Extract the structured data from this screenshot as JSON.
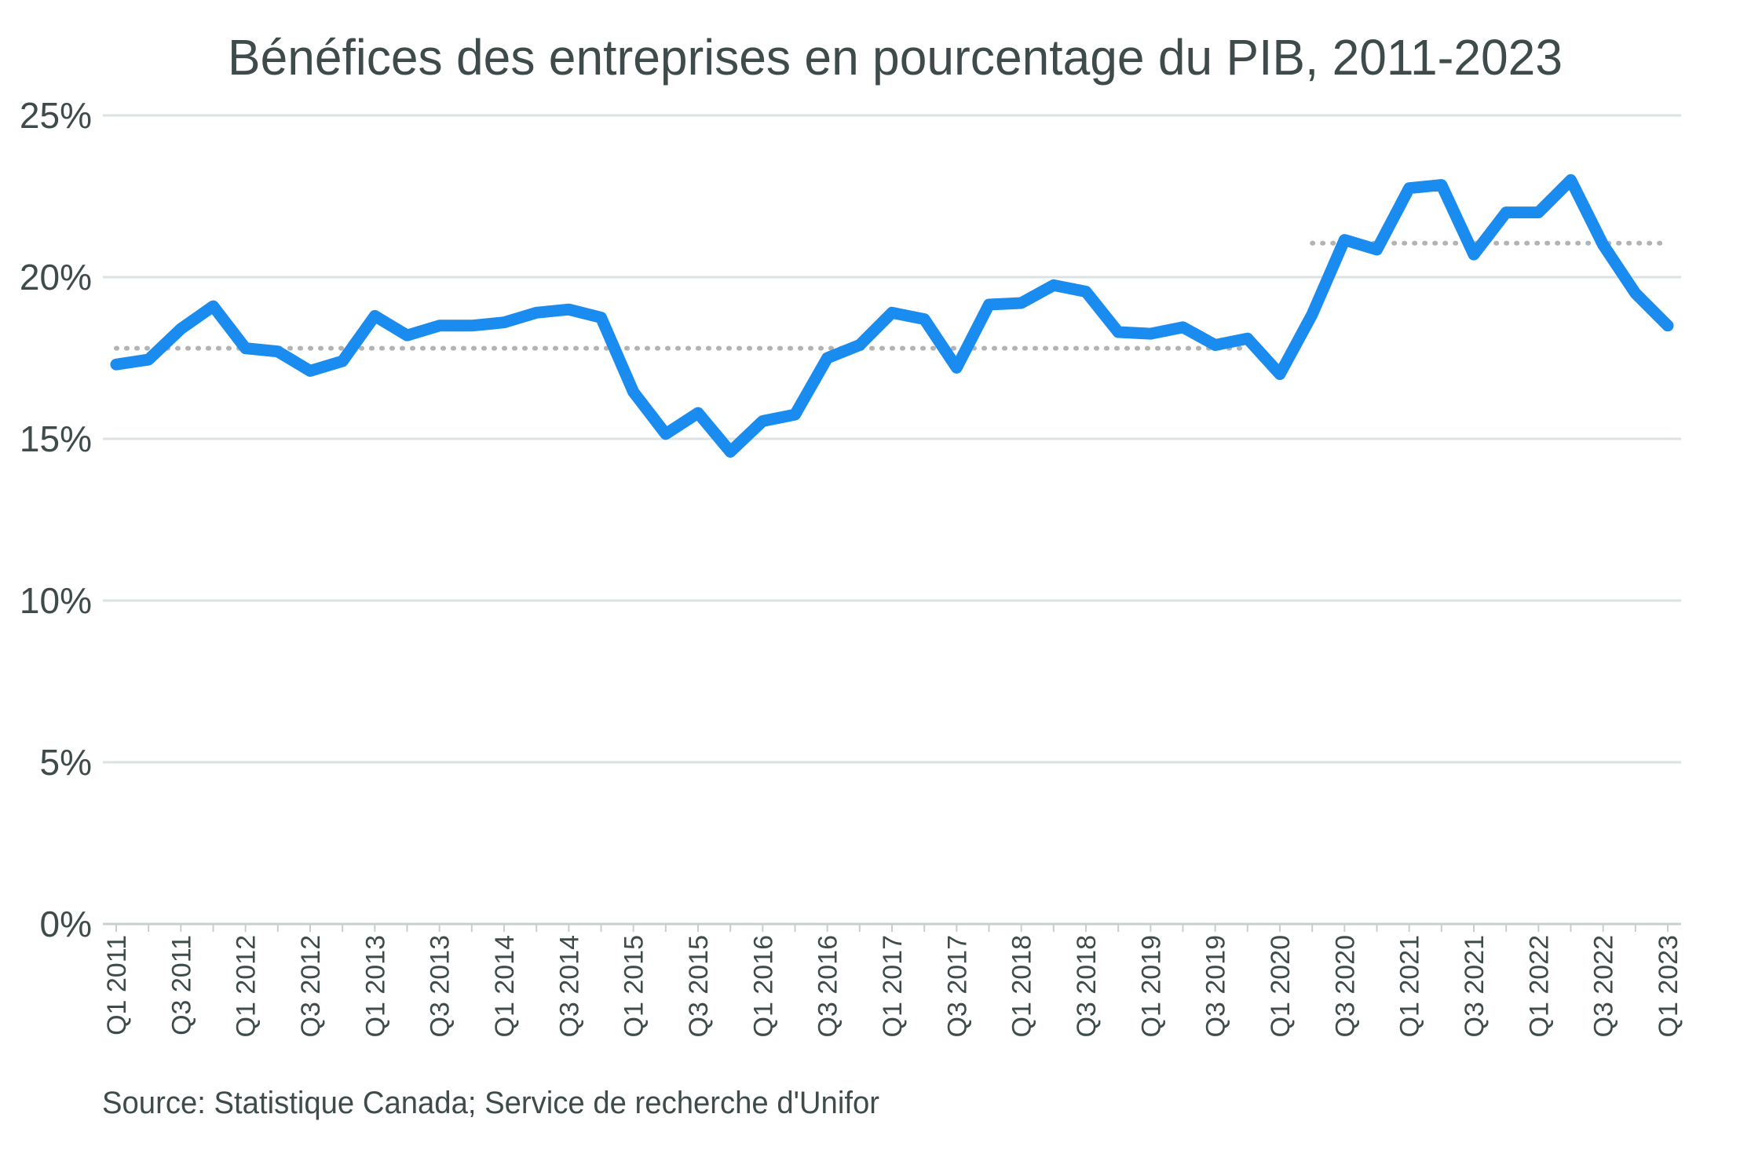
{
  "chart_data": {
    "type": "line",
    "title": "Bénéfices des entreprises en pourcentage du PIB, 2011-2023",
    "source": "Source: Statistique Canada; Service de recherche d'Unifor",
    "categories": [
      "Q1 2011",
      null,
      "Q3 2011",
      null,
      "Q1 2012",
      null,
      "Q3 2012",
      null,
      "Q1 2013",
      null,
      "Q3 2013",
      null,
      "Q1 2014",
      null,
      "Q3 2014",
      null,
      "Q1 2015",
      null,
      "Q3 2015",
      null,
      "Q1 2016",
      null,
      "Q3 2016",
      null,
      "Q1 2017",
      null,
      "Q3 2017",
      null,
      "Q1 2018",
      null,
      "Q3 2018",
      null,
      "Q1 2019",
      null,
      "Q3 2019",
      null,
      "Q1 2020",
      null,
      "Q3 2020",
      null,
      "Q1 2021",
      null,
      "Q3 2021",
      null,
      "Q1 2022",
      null,
      "Q3 2022",
      null,
      "Q1 2023"
    ],
    "series": [
      {
        "color": "#1a8cf0",
        "dashed": false,
        "values": [
          17.3,
          17.45,
          18.4,
          19.1,
          17.8,
          17.7,
          17.1,
          17.4,
          18.8,
          18.2,
          18.5,
          18.5,
          18.6,
          18.9,
          19.0,
          18.75,
          16.45,
          15.15,
          15.8,
          14.6,
          15.55,
          15.75,
          17.5,
          17.9,
          18.9,
          18.7,
          17.2,
          19.15,
          19.2,
          19.75,
          19.55,
          18.3,
          18.25,
          18.45,
          17.9,
          18.1,
          17.0,
          18.85,
          21.15,
          20.85,
          22.75,
          22.85,
          20.7,
          22.0,
          22.0,
          23.0,
          21.0,
          19.5,
          18.5
        ]
      },
      {
        "color": "#b3b3b3",
        "dashed": true,
        "values": [
          17.8,
          17.8,
          17.8,
          17.8,
          17.8,
          17.8,
          17.8,
          17.8,
          17.8,
          17.8,
          17.8,
          17.8,
          17.8,
          17.8,
          17.8,
          17.8,
          17.8,
          17.8,
          17.8,
          17.8,
          17.8,
          17.8,
          17.8,
          17.8,
          17.8,
          17.8,
          17.8,
          17.8,
          17.8,
          17.8,
          17.8,
          17.8,
          17.8,
          17.8,
          17.8,
          17.8,
          null,
          null,
          null,
          null,
          null,
          null,
          null,
          null,
          null,
          null,
          null,
          null,
          null
        ]
      },
      {
        "color": "#b3b3b3",
        "dashed": true,
        "values": [
          null,
          null,
          null,
          null,
          null,
          null,
          null,
          null,
          null,
          null,
          null,
          null,
          null,
          null,
          null,
          null,
          null,
          null,
          null,
          null,
          null,
          null,
          null,
          null,
          null,
          null,
          null,
          null,
          null,
          null,
          null,
          null,
          null,
          null,
          null,
          null,
          null,
          21.05,
          21.05,
          21.05,
          21.05,
          21.05,
          21.05,
          21.05,
          21.05,
          21.05,
          21.05,
          21.05,
          21.05
        ]
      }
    ],
    "ylim": [
      0,
      25
    ],
    "yticks": [
      {
        "value": 0,
        "label": "0%"
      },
      {
        "value": 5,
        "label": "5%"
      },
      {
        "value": 10,
        "label": "10%"
      },
      {
        "value": 15,
        "label": "15%"
      },
      {
        "value": 20,
        "label": "20%"
      },
      {
        "value": 25,
        "label": "25%"
      }
    ],
    "grid": true
  }
}
